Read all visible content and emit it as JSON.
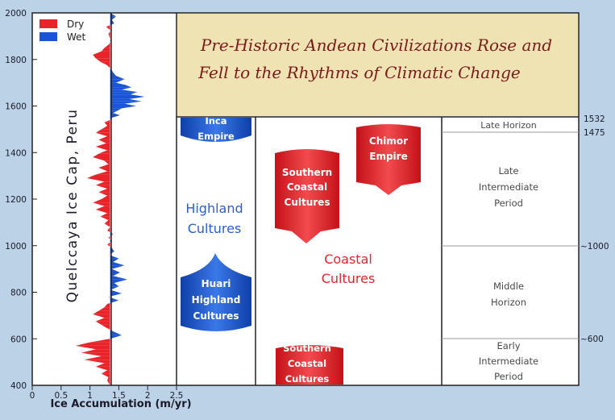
{
  "chart_data": {
    "type": "area",
    "title": "Pre-Historic Andean Civilizations Rose and Fell to the Rhythms of Climatic Change",
    "ylabel": "Quelccaya Ice Cap, Peru",
    "xlabel": "Ice Accumulation (m/yr)",
    "ylim": [
      400,
      2000
    ],
    "xlim": [
      0,
      2.5
    ],
    "y_ticks": [
      "2000",
      "1800",
      "1600",
      "1400",
      "1200",
      "1000",
      "800",
      "600",
      "400"
    ],
    "x_ticks": [
      "0",
      "0.5",
      "1",
      "1.5",
      "2",
      "2.5"
    ],
    "baseline": 1.35,
    "legend": [
      {
        "label": "Dry",
        "color": "#e8242a"
      },
      {
        "label": "Wet",
        "color": "#1a55d8"
      }
    ],
    "series": [
      {
        "name": "Ice accumulation",
        "points": [
          [
            2000,
            1.35
          ],
          [
            1985,
            1.45
          ],
          [
            1970,
            1.38
          ],
          [
            1955,
            1.42
          ],
          [
            1940,
            1.28
          ],
          [
            1925,
            1.36
          ],
          [
            1910,
            1.32
          ],
          [
            1895,
            1.34
          ],
          [
            1880,
            1.36
          ],
          [
            1865,
            1.33
          ],
          [
            1850,
            1.25
          ],
          [
            1835,
            1.2
          ],
          [
            1820,
            1.05
          ],
          [
            1805,
            1.1
          ],
          [
            1790,
            1.18
          ],
          [
            1775,
            1.3
          ],
          [
            1760,
            1.36
          ],
          [
            1745,
            1.4
          ],
          [
            1730,
            1.45
          ],
          [
            1715,
            1.6
          ],
          [
            1700,
            1.45
          ],
          [
            1690,
            1.62
          ],
          [
            1680,
            1.72
          ],
          [
            1670,
            1.55
          ],
          [
            1660,
            1.82
          ],
          [
            1650,
            1.7
          ],
          [
            1640,
            1.95
          ],
          [
            1630,
            1.68
          ],
          [
            1620,
            1.9
          ],
          [
            1610,
            1.6
          ],
          [
            1600,
            1.8
          ],
          [
            1590,
            1.55
          ],
          [
            1580,
            1.48
          ],
          [
            1570,
            1.4
          ],
          [
            1560,
            1.52
          ],
          [
            1550,
            1.38
          ],
          [
            1540,
            1.35
          ],
          [
            1530,
            1.25
          ],
          [
            1515,
            1.3
          ],
          [
            1500,
            1.2
          ],
          [
            1485,
            1.1
          ],
          [
            1470,
            1.3
          ],
          [
            1455,
            1.15
          ],
          [
            1440,
            1.28
          ],
          [
            1425,
            1.1
          ],
          [
            1410,
            1.3
          ],
          [
            1395,
            1.15
          ],
          [
            1380,
            1.05
          ],
          [
            1365,
            1.25
          ],
          [
            1350,
            1.32
          ],
          [
            1335,
            1.15
          ],
          [
            1320,
            1.3
          ],
          [
            1305,
            1.1
          ],
          [
            1290,
            0.95
          ],
          [
            1275,
            1.25
          ],
          [
            1260,
            1.1
          ],
          [
            1245,
            1.3
          ],
          [
            1230,
            1.15
          ],
          [
            1215,
            1.3
          ],
          [
            1200,
            1.2
          ],
          [
            1185,
            1.05
          ],
          [
            1170,
            1.25
          ],
          [
            1155,
            1.1
          ],
          [
            1140,
            1.3
          ],
          [
            1125,
            1.18
          ],
          [
            1110,
            1.32
          ],
          [
            1095,
            1.25
          ],
          [
            1080,
            1.35
          ],
          [
            1065,
            1.3
          ],
          [
            1050,
            1.4
          ],
          [
            1035,
            1.32
          ],
          [
            1020,
            1.38
          ],
          [
            1005,
            1.3
          ],
          [
            990,
            1.38
          ],
          [
            975,
            1.42
          ],
          [
            960,
            1.33
          ],
          [
            945,
            1.5
          ],
          [
            930,
            1.4
          ],
          [
            915,
            1.6
          ],
          [
            900,
            1.38
          ],
          [
            885,
            1.52
          ],
          [
            870,
            1.4
          ],
          [
            855,
            1.65
          ],
          [
            840,
            1.42
          ],
          [
            825,
            1.5
          ],
          [
            810,
            1.36
          ],
          [
            795,
            1.55
          ],
          [
            780,
            1.32
          ],
          [
            765,
            1.5
          ],
          [
            750,
            1.3
          ],
          [
            735,
            1.25
          ],
          [
            720,
            1.15
          ],
          [
            705,
            1.05
          ],
          [
            690,
            1.25
          ],
          [
            675,
            1.1
          ],
          [
            660,
            1.2
          ],
          [
            645,
            1.3
          ],
          [
            630,
            1.42
          ],
          [
            615,
            1.55
          ],
          [
            600,
            1.35
          ],
          [
            585,
            1.0
          ],
          [
            570,
            0.75
          ],
          [
            555,
            1.1
          ],
          [
            540,
            0.85
          ],
          [
            525,
            1.2
          ],
          [
            510,
            0.9
          ],
          [
            495,
            1.25
          ],
          [
            480,
            1.1
          ],
          [
            465,
            1.3
          ],
          [
            450,
            1.2
          ],
          [
            435,
            1.32
          ],
          [
            420,
            1.3
          ],
          [
            400,
            1.35
          ]
        ]
      }
    ]
  },
  "periods": {
    "horizon": [
      {
        "key": "late_horizon",
        "label": "Late Horizon"
      },
      {
        "key": "late_intermediate",
        "label": "Late Intermediate Period"
      },
      {
        "key": "middle_horizon",
        "label": "Middle Horizon"
      },
      {
        "key": "early_intermediate",
        "label": "Early Intermediate Period"
      }
    ],
    "year_marks": [
      "1532",
      "1475",
      "~1000",
      "~600"
    ]
  },
  "cultures": {
    "highland_label": "Highland Cultures",
    "coastal_label": "Coastal Cultures",
    "blocks": [
      {
        "key": "inca",
        "label": "Inca Empire",
        "color": "#1f5fd1"
      },
      {
        "key": "huari",
        "label": "Huari Highland Cultures",
        "color": "#1f5fd1"
      },
      {
        "key": "southern_coastal_upper",
        "label": "Southern Coastal Cultures",
        "color": "#e8242a"
      },
      {
        "key": "chimor",
        "label": "Chimor Empire",
        "color": "#e8242a"
      },
      {
        "key": "southern_coastal_lower",
        "label": "Southern Coastal Cultures",
        "color": "#e8242a"
      }
    ]
  },
  "colors": {
    "background": "#bcd2e6",
    "panel": "#ffffff",
    "title_box": "#efe3b4",
    "title_text": "#7a1a1a",
    "highland_text": "#2a5fd0",
    "coastal_text": "#e8242a",
    "period_text": "#4a4a4a"
  }
}
